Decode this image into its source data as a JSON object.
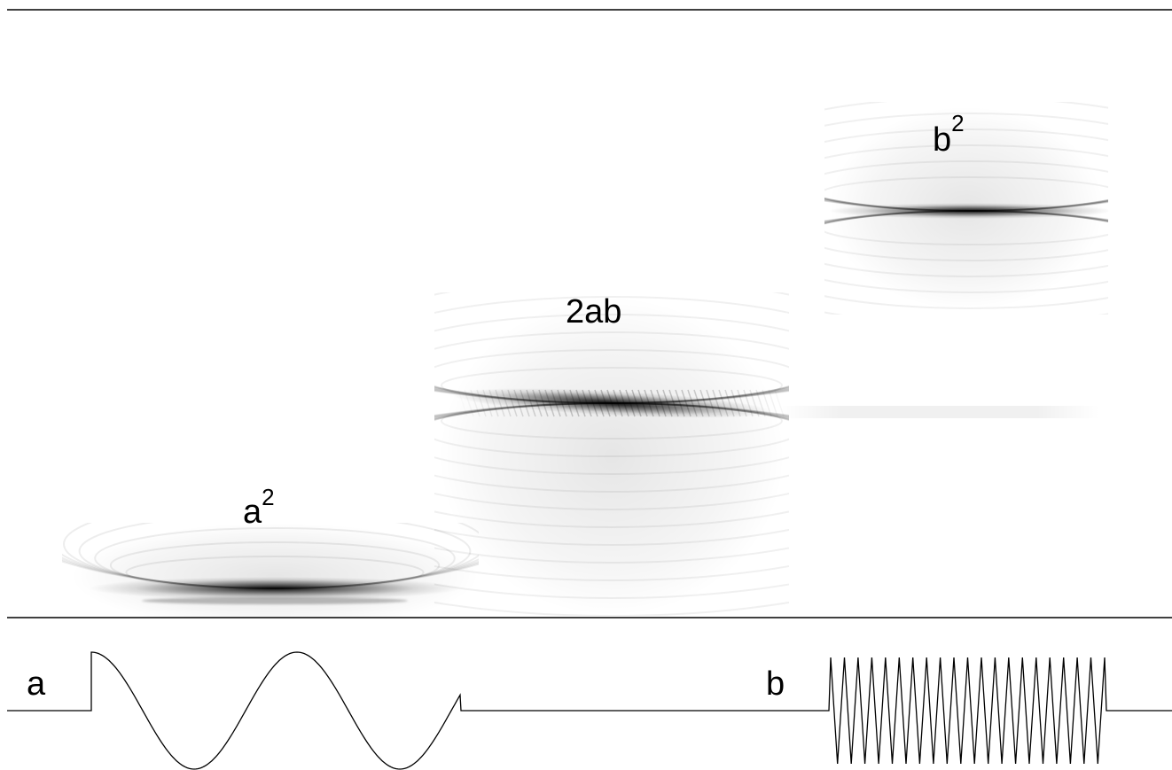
{
  "figure": {
    "labels": {
      "a_squared": {
        "base": "a",
        "sup": "2"
      },
      "cross_term": "2ab",
      "b_squared": {
        "base": "b",
        "sup": "2"
      },
      "signal_a": "a",
      "signal_b": "b"
    },
    "colors": {
      "background": "#ffffff",
      "ink": "#000000"
    }
  }
}
